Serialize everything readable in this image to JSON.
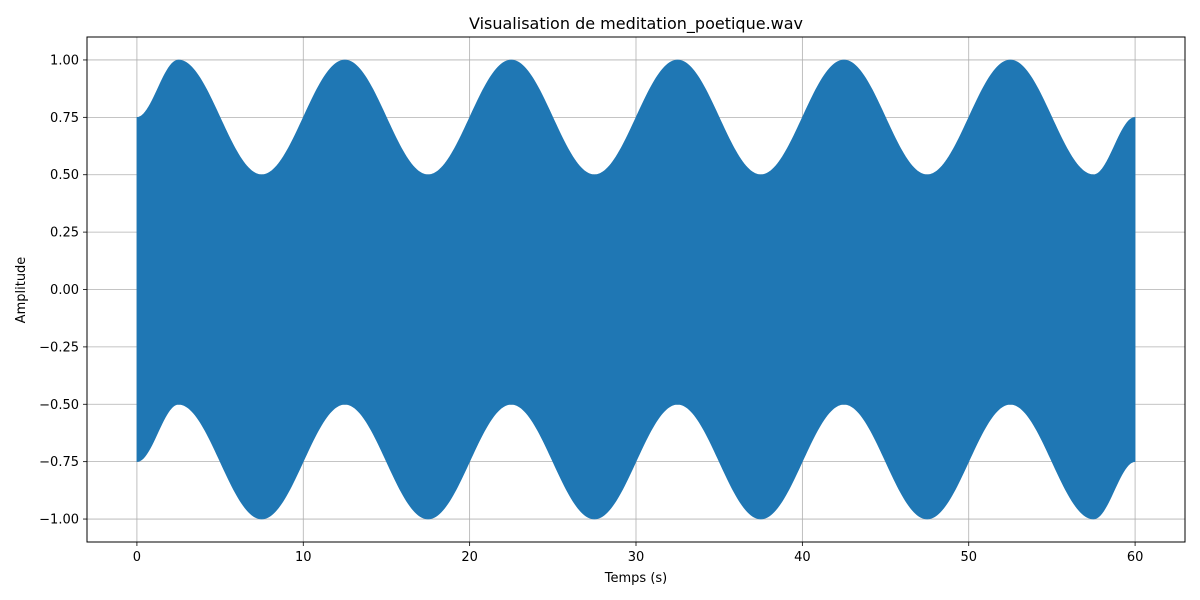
{
  "chart_data": {
    "type": "area",
    "title": "Visualisation de meditation_poetique.wav",
    "xlabel": "Temps (s)",
    "ylabel": "Amplitude",
    "xlim": [
      -3,
      63
    ],
    "ylim": [
      -1.1,
      1.1
    ],
    "xticks": [
      0,
      10,
      20,
      30,
      40,
      50,
      60
    ],
    "xtick_labels": [
      "0",
      "10",
      "20",
      "30",
      "40",
      "50",
      "60"
    ],
    "yticks": [
      1.0,
      0.75,
      0.5,
      0.25,
      0.0,
      -0.25,
      -0.5,
      -0.75,
      -1.0
    ],
    "ytick_labels": [
      "1.00",
      "0.75",
      "0.50",
      "0.25",
      "0.00",
      "−0.25",
      "−0.50",
      "−0.75",
      "−1.00"
    ],
    "grid": true,
    "series": [
      {
        "color": "#1f77b4",
        "x": [
          0,
          2.5,
          7.5,
          12.5,
          17.5,
          22.5,
          27.5,
          32.5,
          37.5,
          42.5,
          47.5,
          52.5,
          57.5,
          60
        ],
        "upper": [
          0.75,
          1.0,
          0.5,
          1.0,
          0.5,
          1.0,
          0.5,
          1.0,
          0.5,
          1.0,
          0.5,
          1.0,
          0.5,
          0.75
        ],
        "lower": [
          -0.75,
          -0.5,
          -1.0,
          -0.5,
          -1.0,
          -0.5,
          -1.0,
          -0.5,
          -1.0,
          -0.5,
          -1.0,
          -0.5,
          -1.0,
          -0.75
        ]
      }
    ]
  }
}
